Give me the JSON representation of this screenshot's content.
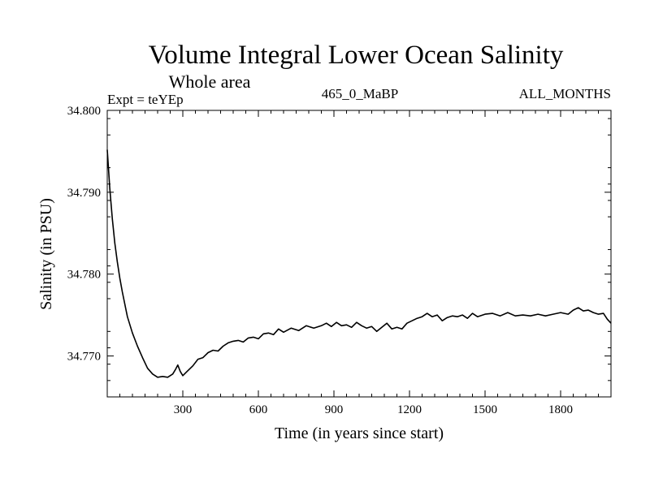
{
  "chart_data": {
    "type": "line",
    "title": "Volume Integral Lower Ocean Salinity",
    "subtitle": "Whole area",
    "experiment_label": "Expt = teYEp",
    "run_label": "465_0_MaBP",
    "period_label": "ALL_MONTHS",
    "xlabel": "Time (in years since start)",
    "ylabel": "Salinity (in PSU)",
    "xlim": [
      0,
      2000
    ],
    "ylim": [
      34.765,
      34.8
    ],
    "x_ticks": [
      300,
      600,
      900,
      1200,
      1500,
      1800
    ],
    "x_tick_labels": [
      "300",
      "600",
      "900",
      "1200",
      "1500",
      "1800"
    ],
    "y_ticks": [
      34.77,
      34.78,
      34.79,
      34.8
    ],
    "y_tick_labels": [
      "34.770",
      "34.780",
      "34.790",
      "34.800"
    ],
    "grid": false,
    "line_color": "#000000",
    "series": [
      {
        "name": "salinity",
        "x": [
          0,
          5,
          10,
          20,
          30,
          40,
          50,
          60,
          80,
          100,
          120,
          140,
          160,
          180,
          200,
          220,
          240,
          260,
          270,
          280,
          290,
          300,
          320,
          340,
          360,
          380,
          400,
          420,
          440,
          460,
          480,
          500,
          520,
          540,
          560,
          580,
          600,
          620,
          640,
          660,
          680,
          700,
          730,
          760,
          790,
          820,
          850,
          870,
          890,
          910,
          930,
          950,
          970,
          990,
          1010,
          1030,
          1050,
          1070,
          1090,
          1110,
          1130,
          1150,
          1170,
          1190,
          1210,
          1230,
          1250,
          1270,
          1290,
          1310,
          1330,
          1350,
          1370,
          1390,
          1410,
          1430,
          1450,
          1470,
          1500,
          1530,
          1560,
          1590,
          1620,
          1650,
          1680,
          1710,
          1740,
          1770,
          1800,
          1830,
          1850,
          1870,
          1890,
          1910,
          1930,
          1950,
          1970,
          1985,
          2000
        ],
        "y": [
          34.7952,
          34.7928,
          34.7905,
          34.7868,
          34.7838,
          34.7815,
          34.7795,
          34.7778,
          34.7748,
          34.7728,
          34.7712,
          34.7698,
          34.7685,
          34.7678,
          34.7674,
          34.7675,
          34.7674,
          34.7678,
          34.7683,
          34.7689,
          34.7681,
          34.7676,
          34.7682,
          34.7688,
          34.7696,
          34.7698,
          34.7704,
          34.7707,
          34.7706,
          34.7712,
          34.7716,
          34.7718,
          34.7719,
          34.7717,
          34.7722,
          34.7723,
          34.7721,
          34.7727,
          34.7728,
          34.7726,
          34.7733,
          34.7729,
          34.7734,
          34.7731,
          34.7737,
          34.7734,
          34.7737,
          34.774,
          34.7736,
          34.7741,
          34.7737,
          34.7738,
          34.7735,
          34.7741,
          34.7737,
          34.7734,
          34.7736,
          34.773,
          34.7735,
          34.774,
          34.7733,
          34.7735,
          34.7733,
          34.774,
          34.7743,
          34.7746,
          34.7748,
          34.7752,
          34.7748,
          34.775,
          34.7743,
          34.7747,
          34.7749,
          34.7748,
          34.775,
          34.7746,
          34.7752,
          34.7748,
          34.7751,
          34.7752,
          34.7749,
          34.7753,
          34.7749,
          34.775,
          34.7749,
          34.7751,
          34.7749,
          34.7751,
          34.7753,
          34.7751,
          34.7756,
          34.7759,
          34.7755,
          34.7756,
          34.7753,
          34.7751,
          34.7752,
          34.7745,
          34.774
        ]
      }
    ]
  }
}
